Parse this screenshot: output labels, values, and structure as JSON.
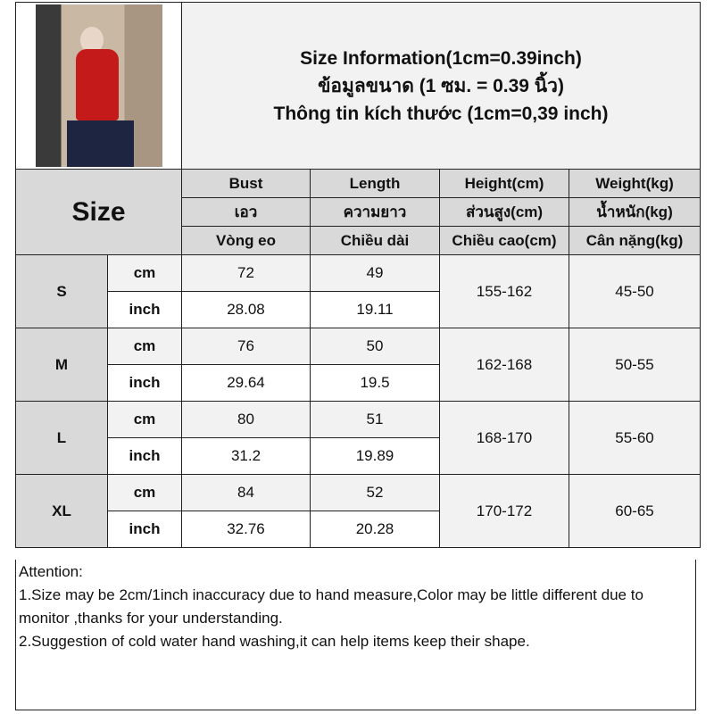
{
  "title_lines": [
    "Size Information(1cm=0.39inch)",
    "ข้อมูลขนาด (1 ซม. = 0.39 นิ้ว)",
    "Thông tin kích thước (1cm=0,39 inch)"
  ],
  "size_label": "Size",
  "columns": [
    {
      "en": "Bust",
      "th": "เอว",
      "vi": "Vòng eo"
    },
    {
      "en": "Length",
      "th": "ความยาว",
      "vi": "Chiều dài"
    },
    {
      "en": "Height(cm)",
      "th": "ส่วนสูง(cm)",
      "vi": "Chiều cao(cm)"
    },
    {
      "en": "Weight(kg)",
      "th": "น้ำหนัก(kg)",
      "vi": "Cân nặng(kg)"
    }
  ],
  "units": {
    "cm": "cm",
    "inch": "inch"
  },
  "rows": [
    {
      "size": "S",
      "cm": [
        "72",
        "49"
      ],
      "inch": [
        "28.08",
        "19.11"
      ],
      "height": "155-162",
      "weight": "45-50"
    },
    {
      "size": "M",
      "cm": [
        "76",
        "50"
      ],
      "inch": [
        "29.64",
        "19.5"
      ],
      "height": "162-168",
      "weight": "50-55"
    },
    {
      "size": "L",
      "cm": [
        "80",
        "51"
      ],
      "inch": [
        "31.2",
        "19.89"
      ],
      "height": "168-170",
      "weight": "55-60"
    },
    {
      "size": "XL",
      "cm": [
        "84",
        "52"
      ],
      "inch": [
        "32.76",
        "20.28"
      ],
      "height": "170-172",
      "weight": "60-65"
    }
  ],
  "notes": {
    "heading": "Attention:",
    "items": [
      "1.Size may be 2cm/1inch inaccuracy due to hand measure,Color may be little different due to monitor ,thanks for your understanding.",
      "2.Suggestion of cold water hand washing,it can help items keep their shape."
    ]
  }
}
